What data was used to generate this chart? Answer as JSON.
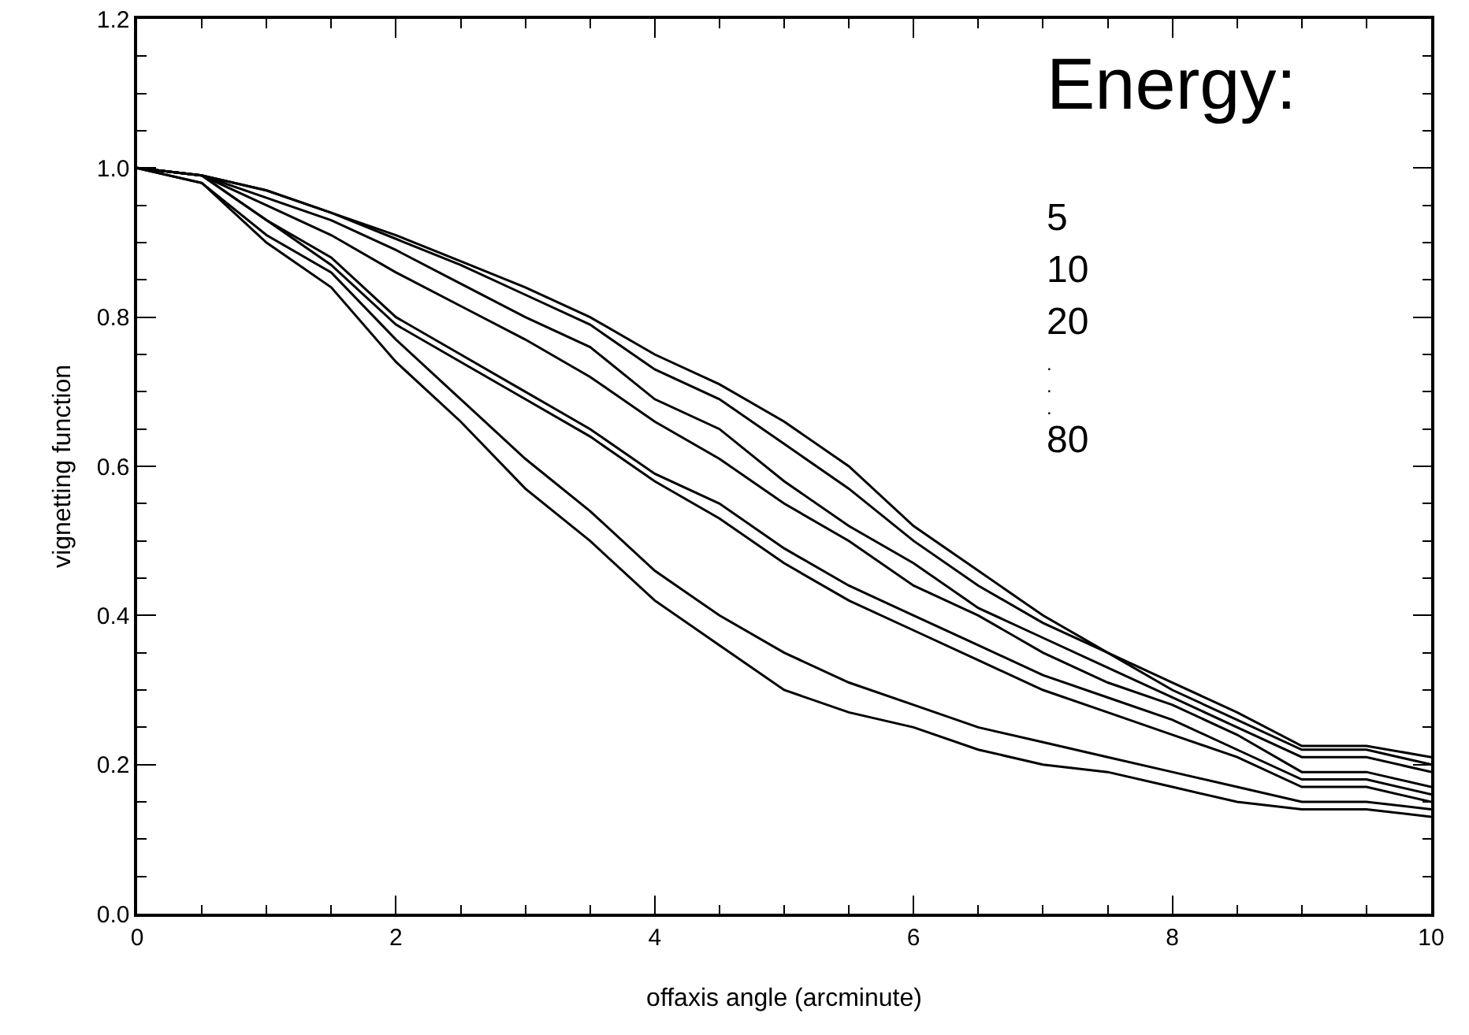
{
  "chart_data": {
    "type": "line",
    "xlabel": "offaxis angle (arcminute)",
    "ylabel": "vignetting function",
    "x": [
      0,
      0.5,
      1,
      1.5,
      2,
      2.5,
      3,
      3.5,
      4,
      4.5,
      5,
      5.5,
      6,
      6.5,
      7,
      7.5,
      8,
      8.5,
      9,
      9.5,
      10
    ],
    "series": [
      {
        "color": "#000000",
        "values": [
          1.0,
          0.99,
          0.97,
          0.94,
          0.91,
          0.875,
          0.84,
          0.8,
          0.75,
          0.71,
          0.66,
          0.6,
          0.52,
          0.46,
          0.4,
          0.35,
          0.31,
          0.27,
          0.225,
          0.225,
          0.21
        ]
      },
      {
        "color": "#000000",
        "values": [
          1.0,
          0.99,
          0.97,
          0.94,
          0.905,
          0.87,
          0.83,
          0.79,
          0.73,
          0.69,
          0.63,
          0.57,
          0.5,
          0.44,
          0.39,
          0.35,
          0.3,
          0.26,
          0.22,
          0.22,
          0.2
        ]
      },
      {
        "color": "#000000",
        "values": [
          1.0,
          0.99,
          0.96,
          0.93,
          0.89,
          0.845,
          0.8,
          0.76,
          0.69,
          0.65,
          0.58,
          0.52,
          0.47,
          0.41,
          0.37,
          0.33,
          0.29,
          0.25,
          0.21,
          0.21,
          0.19
        ]
      },
      {
        "color": "#000000",
        "values": [
          1.0,
          0.99,
          0.95,
          0.91,
          0.86,
          0.815,
          0.77,
          0.72,
          0.66,
          0.61,
          0.55,
          0.5,
          0.44,
          0.4,
          0.35,
          0.31,
          0.28,
          0.24,
          0.19,
          0.19,
          0.17
        ]
      },
      {
        "color": "#000000",
        "values": [
          1.0,
          0.99,
          0.93,
          0.88,
          0.8,
          0.75,
          0.7,
          0.65,
          0.59,
          0.55,
          0.49,
          0.44,
          0.4,
          0.36,
          0.32,
          0.29,
          0.26,
          0.22,
          0.18,
          0.18,
          0.16
        ]
      },
      {
        "color": "#000000",
        "values": [
          1.0,
          0.99,
          0.93,
          0.87,
          0.79,
          0.74,
          0.69,
          0.64,
          0.58,
          0.53,
          0.47,
          0.42,
          0.38,
          0.34,
          0.3,
          0.27,
          0.24,
          0.21,
          0.17,
          0.17,
          0.15
        ]
      },
      {
        "color": "#000000",
        "values": [
          1.0,
          0.98,
          0.91,
          0.86,
          0.77,
          0.69,
          0.61,
          0.54,
          0.46,
          0.4,
          0.35,
          0.31,
          0.28,
          0.25,
          0.23,
          0.21,
          0.19,
          0.17,
          0.15,
          0.15,
          0.14
        ]
      },
      {
        "color": "#000000",
        "values": [
          1.0,
          0.98,
          0.9,
          0.84,
          0.74,
          0.66,
          0.57,
          0.5,
          0.42,
          0.36,
          0.3,
          0.27,
          0.25,
          0.22,
          0.2,
          0.19,
          0.17,
          0.15,
          0.14,
          0.14,
          0.13
        ]
      }
    ],
    "xlim": [
      0,
      10
    ],
    "xticks": [
      0,
      2,
      4,
      6,
      8,
      10
    ],
    "ylim": [
      0,
      1.2
    ],
    "yticks": [
      {
        "value": 0,
        "label": "0.0"
      },
      {
        "value": 0.2,
        "label": "0.2"
      },
      {
        "value": 0.4,
        "label": "0.4"
      },
      {
        "value": 0.6,
        "label": "0.6"
      },
      {
        "value": 0.8,
        "label": "0.8"
      },
      {
        "value": 1,
        "label": "1.0"
      },
      {
        "value": 1.2,
        "label": "1.2"
      }
    ],
    "grid": false,
    "marker": "none",
    "line_style": "solid",
    "annotations": [
      "Energy:",
      "5",
      "10",
      "20",
      ".",
      ".",
      ".",
      "80"
    ]
  }
}
